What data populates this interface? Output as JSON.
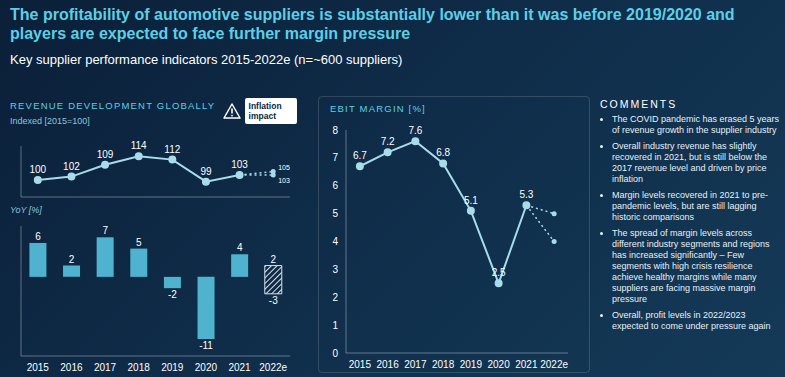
{
  "header": {
    "title": "The profitability of automotive suppliers is substantially lower than it was before 2019/2020 and players are expected to face further margin pressure",
    "subtitle": "Key supplier performance indicators 2015-2022e (n=~600 suppliers)"
  },
  "chart_data": [
    {
      "type": "line",
      "title": "REVENUE DEVELOPMENT GLOBALLY",
      "subtitle": "Indexed [2015=100]",
      "categories": [
        "2015",
        "2016",
        "2017",
        "2018",
        "2019",
        "2020",
        "2021",
        "2022e"
      ],
      "values": [
        100,
        102,
        109,
        114,
        112,
        99,
        103,
        null
      ],
      "forecast": {
        "values": [
          105,
          103
        ],
        "line_style": "dotted",
        "data_labels": true
      },
      "annotation": {
        "text": "Inflation impact",
        "category": "2021"
      },
      "ylim": [
        90,
        120
      ],
      "data_labels": true,
      "tick_labels": false,
      "color": "#a9dcea"
    },
    {
      "type": "bar",
      "subtitle": "YoY [%]",
      "categories": [
        "2015",
        "2016",
        "2017",
        "2018",
        "2019",
        "2020",
        "2021",
        "2022e"
      ],
      "values": [
        6,
        2,
        7,
        5,
        -2,
        -11,
        4,
        null
      ],
      "estimate_range": [
        -3,
        2
      ],
      "ylim": [
        -14,
        9
      ],
      "data_labels": true,
      "tick_labels": "x",
      "color": "#4fb3cf"
    },
    {
      "type": "line",
      "title": "EBIT MARGIN [%]",
      "categories": [
        "2015",
        "2016",
        "2017",
        "2018",
        "2019",
        "2020",
        "2021",
        "2022e"
      ],
      "values": [
        6.7,
        7.2,
        7.6,
        6.8,
        5.1,
        2.5,
        5.3,
        null
      ],
      "forecast": {
        "values": [
          5.0,
          4.0
        ],
        "line_style": "dotted",
        "data_labels": false
      },
      "ylim": [
        0,
        8
      ],
      "yticks": [
        0,
        1,
        2,
        3,
        4,
        5,
        6,
        7,
        8
      ],
      "data_labels": true,
      "color": "#a9dcea"
    }
  ],
  "comments": {
    "title": "COMMENTS",
    "items": [
      "The COVID pandemic has erased 5 years of revenue growth in the supplier industry",
      "Overall industry revenue has slightly recovered in 2021, but is still below the 2017 revenue level and driven by price inflation",
      "Margin levels recovered in 2021 to pre-pandemic levels, but are still lagging historic comparisons",
      "The spread of margin levels across different industry segments and regions has increased significantly – Few segments with high crisis resilience achieve healthy margins while many suppliers are facing massive margin pressure",
      "Overall, profit levels in 2022/2023 expected to come under pressure again"
    ]
  }
}
